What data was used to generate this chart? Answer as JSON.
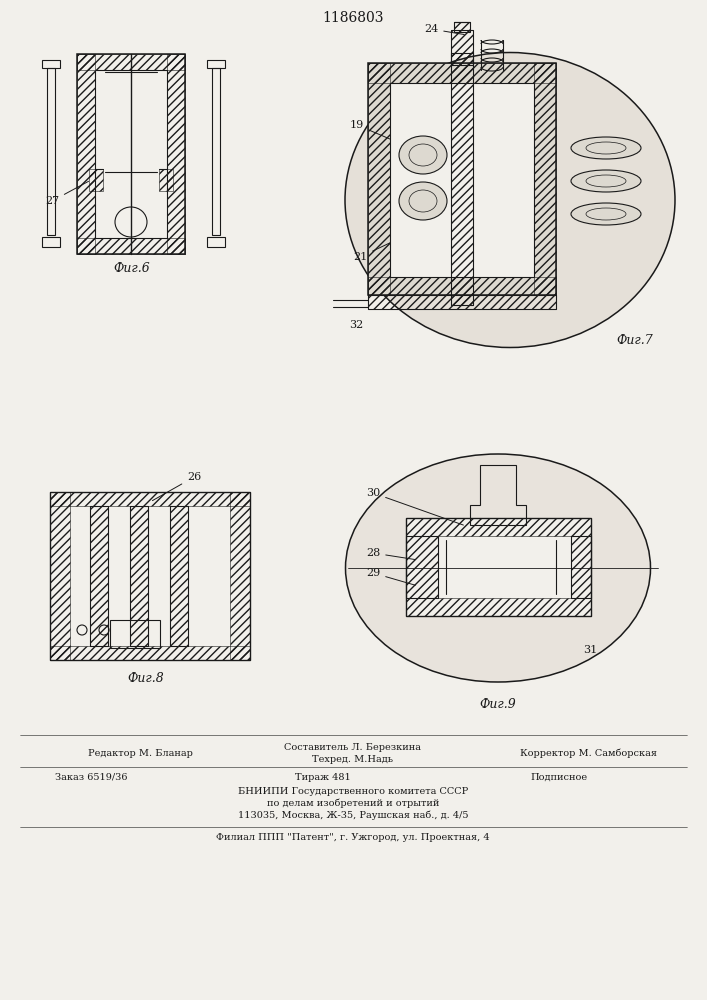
{
  "patent_number": "1186803",
  "bg_color": "#f2f0eb",
  "line_color": "#1a1a1a",
  "fig6_label": "Фиг.6",
  "fig7_label": "Фиг.7",
  "fig8_label": "Фиг.8",
  "fig9_label": "Фиг.9",
  "label_27": "27",
  "label_24": "24",
  "label_19": "19",
  "label_21": "21",
  "label_32": "32",
  "label_26": "26",
  "label_28": "28",
  "label_29": "29",
  "label_30": "30",
  "label_31": "31",
  "footer_line1_left": "Редактор М. Бланар",
  "footer_line1_center": "Составитель Л. Березкина",
  "footer_line1_center2": "Техред. М.Надь",
  "footer_line1_right": "Корректор М. Самборская",
  "footer_line2_left": "Заказ 6519/36",
  "footer_line2_center": "Тираж 481",
  "footer_line2_right": "Подписное",
  "footer_line3": "БНИИПИ Государственного комитета СССР",
  "footer_line4": "по делам изобретений и отрытий",
  "footer_line5": "113035, Москва, Ж-35, Раушская наб., д. 4/5",
  "footer_last": "Филиал ППП \"Патент\", г. Ужгород, ул. Проектная, 4"
}
